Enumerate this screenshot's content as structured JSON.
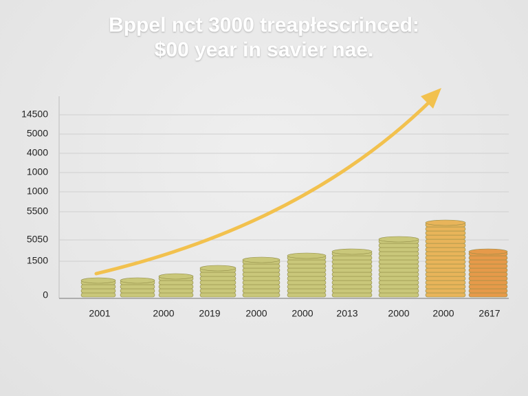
{
  "chart_data": {
    "type": "bar",
    "title": [
      "Bppel nct 3000 treapłescrinced:",
      "$00 year in savier nae."
    ],
    "y_labels": [
      "14500",
      "5000",
      "4000",
      "1000",
      "1000",
      "5500",
      "5050",
      "1500",
      "0"
    ],
    "categories": [
      "2001",
      null,
      "2000",
      "2019",
      "2000",
      "2000",
      "2013",
      "2000",
      "2000",
      "2617"
    ],
    "values": [
      4,
      4,
      5,
      7,
      9,
      10,
      11,
      14,
      18,
      11
    ],
    "colors": [
      "#c9c77a",
      "#c9c77a",
      "#c9c77a",
      "#c9c77a",
      "#c9c77a",
      "#c9c77a",
      "#c9c77a",
      "#c9c77a",
      "#e8b45a",
      "#e69a4a"
    ],
    "grid": true
  }
}
